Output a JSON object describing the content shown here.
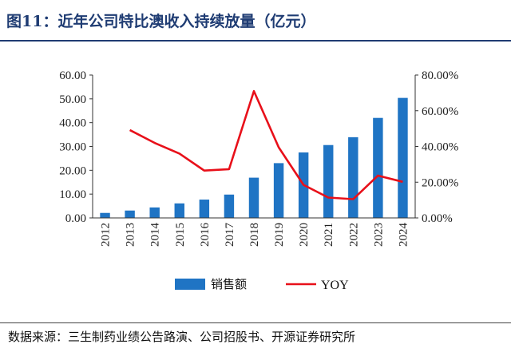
{
  "title": "图11：近年公司特比澳收入持续放量（亿元）",
  "source": "数据来源：三生制药业绩公告路演、公司招股书、开源证券研究所",
  "colors": {
    "bar": "#1f74c4",
    "line": "#e8101a",
    "title": "#1f3c73",
    "axis": "#333333"
  },
  "chart_data": {
    "type": "bar",
    "categories": [
      "2012",
      "2013",
      "2014",
      "2015",
      "2016",
      "2017",
      "2018",
      "2019",
      "2020",
      "2021",
      "2022",
      "2023",
      "2024"
    ],
    "series": [
      {
        "name": "销售额",
        "type": "bar",
        "axis": "left",
        "values": [
          2.1,
          3.1,
          4.4,
          6.1,
          7.7,
          9.8,
          16.9,
          23.0,
          27.5,
          30.6,
          33.9,
          42.0,
          50.4
        ]
      },
      {
        "name": "YOY",
        "type": "line",
        "axis": "right",
        "values": [
          null,
          49.2,
          42.0,
          36.0,
          26.5,
          27.3,
          71.0,
          39.5,
          18.5,
          11.4,
          10.5,
          23.7,
          20.2
        ]
      }
    ],
    "y_left": {
      "min": 0,
      "max": 60,
      "step": 10,
      "tick_labels": [
        "0.00",
        "10.00",
        "20.00",
        "30.00",
        "40.00",
        "50.00",
        "60.00"
      ]
    },
    "y_right": {
      "min": 0,
      "max": 80,
      "step": 20,
      "tick_labels": [
        "0.00%",
        "20.00%",
        "40.00%",
        "60.00%",
        "80.00%"
      ]
    },
    "grid": false,
    "legend_position": "bottom"
  }
}
